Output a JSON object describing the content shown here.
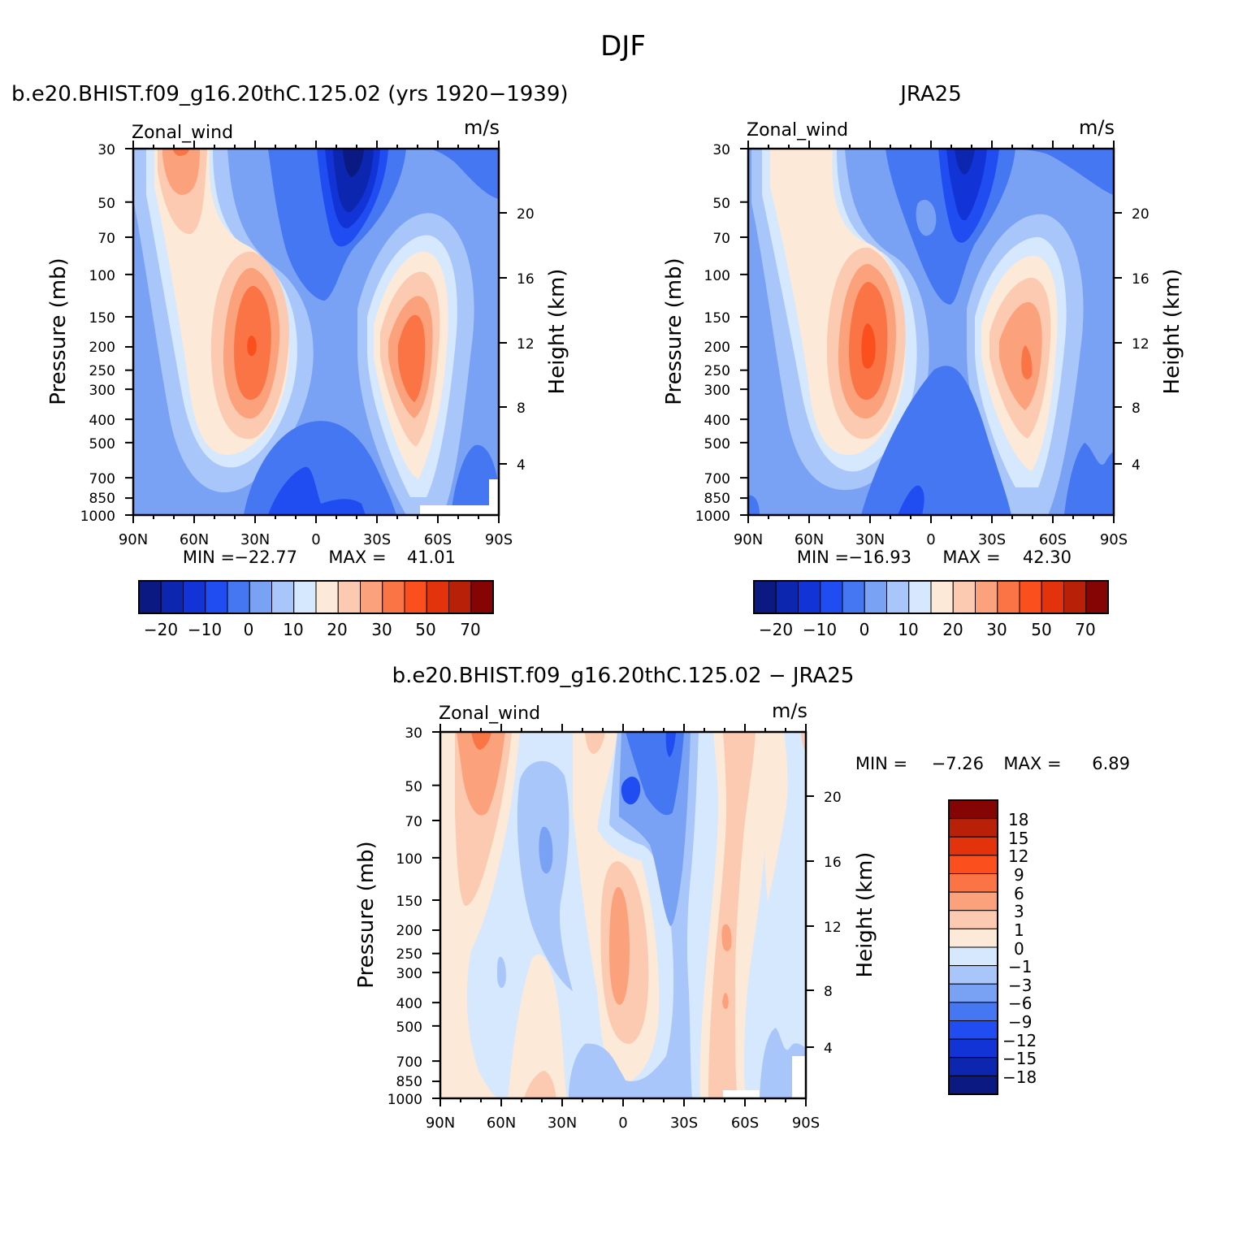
{
  "title": "DJF",
  "colors": {
    "full": [
      "#0a1a82",
      "#0d26b0",
      "#1234d6",
      "#1f4df2",
      "#4677f2",
      "#79a2f5",
      "#a8c6fa",
      "#d6e8fd",
      "#fde9d8",
      "#fccab0",
      "#fba27c",
      "#fb7446",
      "#fb4f1e",
      "#e2330c",
      "#b82008",
      "#850404"
    ],
    "diff": [
      "#0a1a82",
      "#0d26b0",
      "#1234d6",
      "#1f4df2",
      "#4677f2",
      "#79a2f5",
      "#a8c6fa",
      "#d6e8fd",
      "#fde9d8",
      "#fccab0",
      "#fba27c",
      "#fb7446",
      "#fb4f1e",
      "#e2330c",
      "#b82008",
      "#850404"
    ]
  },
  "chart_data": [
    {
      "type": "contour",
      "title": "b.e20.BHIST.f09_g16.20thC.125.02 (yrs 1920−1939)",
      "field_label": "Zonal_wind",
      "units": "m/s",
      "ylabel": "Pressure (mb)",
      "ylabel_right": "Height (km)",
      "x_ticks": [
        "90N",
        "60N",
        "30N",
        "0",
        "30S",
        "60S",
        "90S"
      ],
      "y_ticks": [
        "30",
        "50",
        "70",
        "100",
        "150",
        "200",
        "250",
        "300",
        "400",
        "500",
        "700",
        "850",
        "1000"
      ],
      "y_right_ticks": [
        "20",
        "16",
        "12",
        "8",
        "4"
      ],
      "min_label": "MIN =",
      "min_value": "−22.77",
      "max_label": "MAX =",
      "max_value": "41.01",
      "colorbar_labels": [
        "−20",
        "−10",
        "0",
        "10",
        "20",
        "30",
        "50",
        "70"
      ],
      "centers": [
        {
          "lat": 30,
          "p": 200,
          "value": 41.01
        },
        {
          "lat": -48,
          "p": 230,
          "value": 36
        },
        {
          "lat": 70,
          "p": 30,
          "value": 25
        },
        {
          "lat": -18,
          "p": 30,
          "value": -22.77
        }
      ]
    },
    {
      "type": "contour",
      "title": "JRA25",
      "field_label": "Zonal_wind",
      "units": "m/s",
      "ylabel": "Pressure (mb)",
      "ylabel_right": "Height (km)",
      "x_ticks": [
        "90N",
        "60N",
        "30N",
        "0",
        "30S",
        "60S",
        "90S"
      ],
      "y_ticks": [
        "30",
        "50",
        "70",
        "100",
        "150",
        "200",
        "250",
        "300",
        "400",
        "500",
        "700",
        "850",
        "1000"
      ],
      "y_right_ticks": [
        "20",
        "16",
        "12",
        "8",
        "4"
      ],
      "min_label": "MIN =",
      "min_value": "−16.93",
      "max_label": "MAX =",
      "max_value": "42.30",
      "colorbar_labels": [
        "−20",
        "−10",
        "0",
        "10",
        "20",
        "30",
        "50",
        "70"
      ],
      "centers": [
        {
          "lat": 30,
          "p": 200,
          "value": 42.3
        },
        {
          "lat": -48,
          "p": 250,
          "value": 34
        },
        {
          "lat": 70,
          "p": 30,
          "value": 18
        },
        {
          "lat": -16,
          "p": 30,
          "value": -16.93
        }
      ]
    },
    {
      "type": "contour",
      "title": "b.e20.BHIST.f09_g16.20thC.125.02 − JRA25",
      "field_label": "Zonal_wind",
      "units": "m/s",
      "ylabel": "Pressure (mb)",
      "ylabel_right": "Height (km)",
      "x_ticks": [
        "90N",
        "60N",
        "30N",
        "0",
        "30S",
        "60S",
        "90S"
      ],
      "y_ticks": [
        "30",
        "50",
        "70",
        "100",
        "150",
        "200",
        "250",
        "300",
        "400",
        "500",
        "700",
        "850",
        "1000"
      ],
      "y_right_ticks": [
        "20",
        "16",
        "12",
        "8",
        "4"
      ],
      "min_label": "MIN =",
      "min_value": "−7.26",
      "max_label": "MAX =",
      "max_value": "6.89",
      "colorbar_labels": [
        "18",
        "15",
        "12",
        "9",
        "6",
        "3",
        "1",
        "0",
        "−1",
        "−3",
        "−6",
        "−9",
        "−12",
        "−15",
        "−18"
      ],
      "centers": [
        {
          "lat": 70,
          "p": 40,
          "value": 6.89
        },
        {
          "lat": -15,
          "p": 60,
          "value": -7.26
        },
        {
          "lat": 0,
          "p": 200,
          "value": 3.5
        },
        {
          "lat": -50,
          "p": 200,
          "value": 2.5
        }
      ]
    }
  ]
}
